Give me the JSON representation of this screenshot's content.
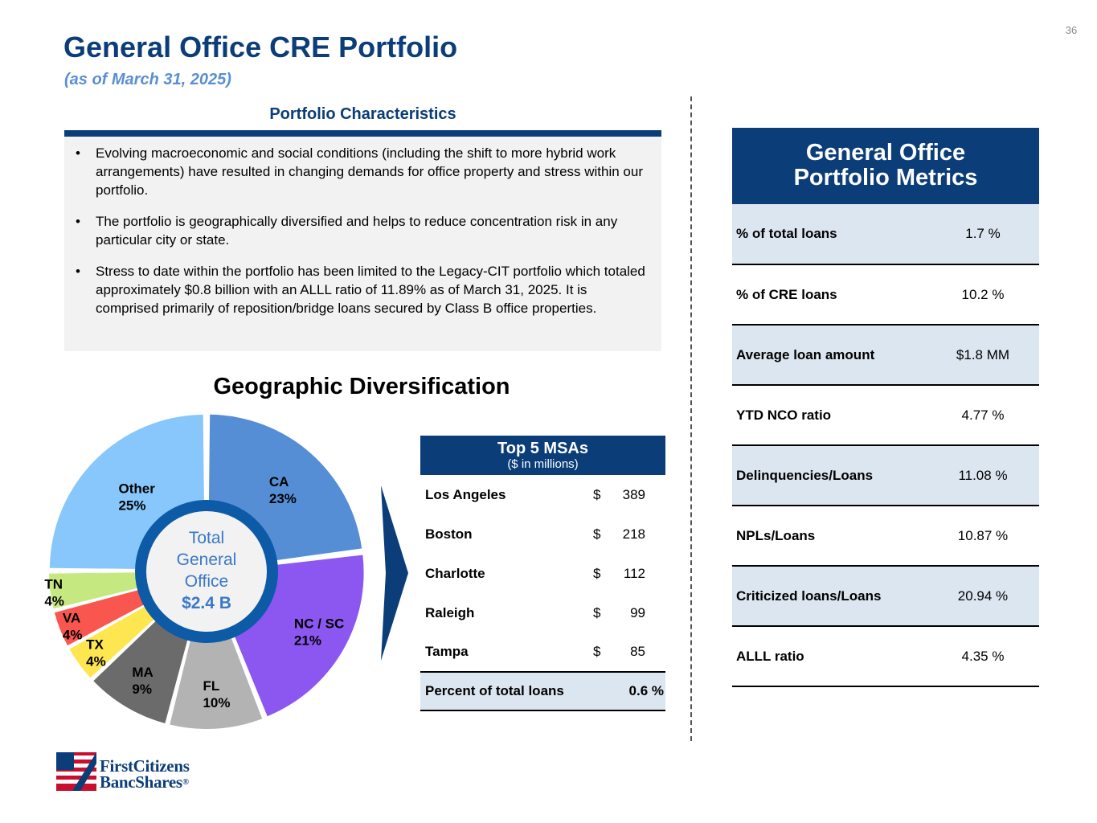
{
  "page_number": "36",
  "title": "General Office CRE Portfolio",
  "subtitle": "(as of March 31, 2025)",
  "characteristics": {
    "heading": "Portfolio Characteristics",
    "bullets": [
      "Evolving macroeconomic and social conditions (including the shift to more hybrid work arrangements) have resulted in changing demands for office property and stress within our portfolio.",
      "The portfolio is geographically diversified and helps to reduce concentration risk in any particular city or state.",
      "Stress to date within the portfolio has been limited to the Legacy-CIT portfolio which totaled approximately $0.8 billion with an ALLL ratio of 11.89% as of March 31, 2025. It is comprised primarily of reposition/bridge loans secured by Class B office properties."
    ]
  },
  "chart_data": {
    "type": "pie",
    "style": "donut",
    "title": "Geographic Diversification",
    "center_label": [
      "Total",
      "General",
      "Office"
    ],
    "center_value": "$2.4 B",
    "unit": "%",
    "slices": [
      {
        "name": "CA",
        "value": 23,
        "label": "23%",
        "color": "#558ed5"
      },
      {
        "name": "NC / SC",
        "value": 21,
        "label": "21%",
        "color": "#8b57f0"
      },
      {
        "name": "FL",
        "value": 10,
        "label": "10%",
        "color": "#b3b3b3"
      },
      {
        "name": "MA",
        "value": 9,
        "label": "9%",
        "color": "#6b6b6b"
      },
      {
        "name": "TX",
        "value": 4,
        "label": "4%",
        "color": "#fde64f"
      },
      {
        "name": "VA",
        "value": 4,
        "label": "4%",
        "color": "#f8564e"
      },
      {
        "name": "TN",
        "value": 4,
        "label": "4%",
        "color": "#c5e880"
      },
      {
        "name": "Other",
        "value": 25,
        "label": "25%",
        "color": "#88c7fb"
      }
    ]
  },
  "msa": {
    "title": "Top 5 MSAs",
    "subtitle": "($ in millions)",
    "rows": [
      {
        "city": "Los Angeles",
        "currency": "$",
        "amount": "389"
      },
      {
        "city": "Boston",
        "currency": "$",
        "amount": "218"
      },
      {
        "city": "Charlotte",
        "currency": "$",
        "amount": "112"
      },
      {
        "city": "Raleigh",
        "currency": "$",
        "amount": "99"
      },
      {
        "city": "Tampa",
        "currency": "$",
        "amount": "85"
      }
    ],
    "total_label": "Percent of total loans",
    "total_value": "0.6 %"
  },
  "metrics": {
    "title_line1": "General Office",
    "title_line2": "Portfolio Metrics",
    "rows": [
      {
        "label": "% of total loans",
        "value": "1.7 %"
      },
      {
        "label": "% of CRE loans",
        "value": "10.2 %"
      },
      {
        "label": "Average loan amount",
        "value": "$1.8 MM"
      },
      {
        "label": "YTD NCO ratio",
        "value": "4.77 %"
      },
      {
        "label": "Delinquencies/Loans",
        "value": "11.08 %"
      },
      {
        "label": "NPLs/Loans",
        "value": "10.87 %"
      },
      {
        "label": "Criticized loans/Loans",
        "value": "20.94 %"
      },
      {
        "label": "ALLL ratio",
        "value": "4.35 %"
      }
    ]
  },
  "logo": {
    "line1": "FirstCitizens",
    "line2": "BancShares",
    "mark": "®"
  },
  "colors": {
    "navy": "#0b3d78",
    "accent_blue": "#5a8fd1",
    "ring": "#0d5aa6",
    "shade": "#dce6f0",
    "panel": "#f2f2f2"
  }
}
